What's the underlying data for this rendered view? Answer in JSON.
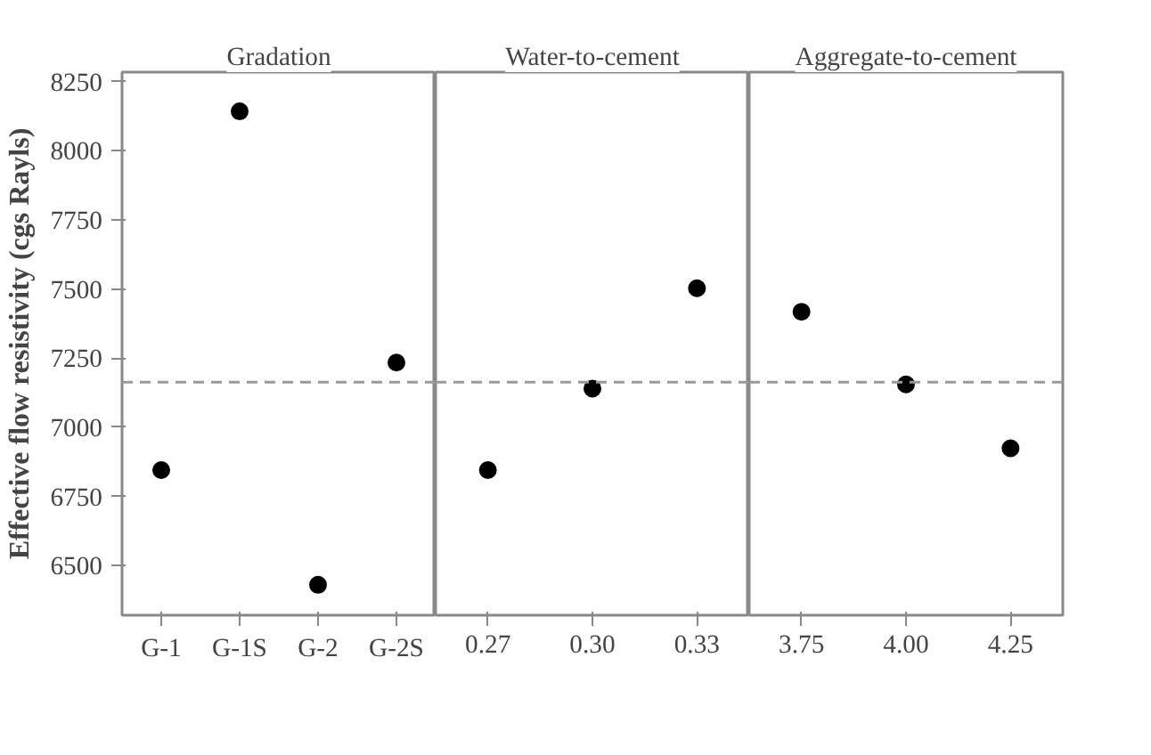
{
  "chart_data": [
    {
      "type": "scatter",
      "title": "Gradation",
      "ylabel": "Effective flow resistivity (cgs Rayls)",
      "categories": [
        "G-1",
        "G-1S",
        "G-2",
        "G-2S"
      ],
      "series": [
        {
          "color": "#000000",
          "values": [
            6845,
            8143,
            6430,
            7234
          ]
        }
      ],
      "ylim": [
        6320,
        8285
      ],
      "yticks": [
        6500,
        6750,
        7000,
        7250,
        7500,
        7750,
        8000,
        8250
      ],
      "grid": false,
      "marker": "circle",
      "ref_lines": [
        {
          "axis": "y",
          "value": 7163,
          "color": "#999999",
          "line_style": "dashed"
        }
      ]
    },
    {
      "type": "scatter",
      "title": "Water-to-cement",
      "categories": [
        "0.27",
        "0.30",
        "0.33"
      ],
      "series": [
        {
          "color": "#000000",
          "values": [
            6845,
            7140,
            7503
          ]
        }
      ],
      "ylim": [
        6320,
        8285
      ],
      "yticks": [
        6500,
        6750,
        7000,
        7250,
        7500,
        7750,
        8000,
        8250
      ],
      "tick_labels": "x",
      "grid": false,
      "marker": "circle",
      "ref_lines": [
        {
          "axis": "y",
          "value": 7163,
          "color": "#999999",
          "line_style": "dashed"
        }
      ]
    },
    {
      "type": "scatter",
      "title": "Aggregate-to-cement",
      "categories": [
        "3.75",
        "4.00",
        "4.25"
      ],
      "series": [
        {
          "color": "#000000",
          "values": [
            7418,
            7155,
            6924
          ]
        }
      ],
      "ylim": [
        6320,
        8285
      ],
      "yticks": [
        6500,
        6750,
        7000,
        7250,
        7500,
        7750,
        8000,
        8250
      ],
      "tick_labels": "x",
      "grid": false,
      "marker": "circle",
      "ref_lines": [
        {
          "axis": "y",
          "value": 7163,
          "color": "#999999",
          "line_style": "dashed"
        }
      ]
    }
  ]
}
